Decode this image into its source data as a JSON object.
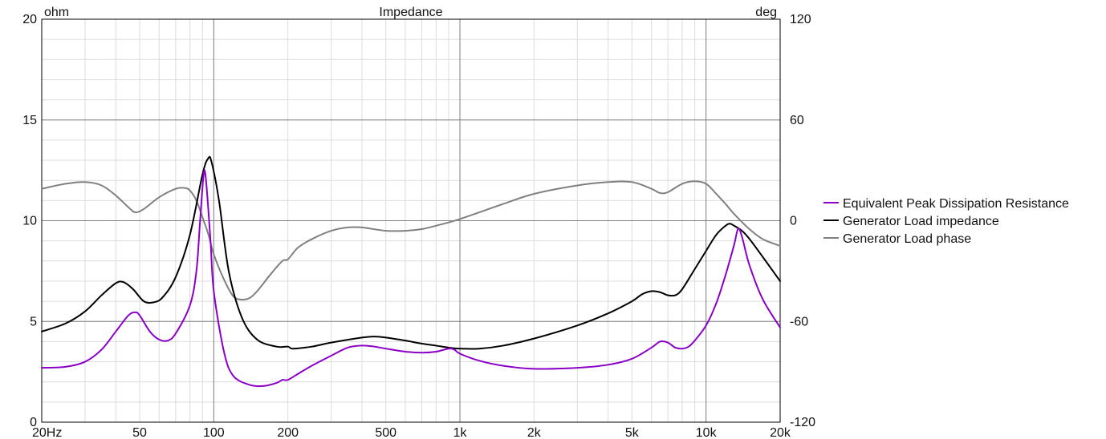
{
  "chart_data": {
    "type": "line",
    "title": "Impedance",
    "left_unit": "ohm",
    "right_unit": "deg",
    "x_scale": "log",
    "xlim": [
      20,
      20000
    ],
    "ylim_left": [
      0,
      20
    ],
    "ylim_right": [
      -120,
      120
    ],
    "x_ticks": [
      {
        "value": 20,
        "label": "20Hz"
      },
      {
        "value": 50,
        "label": "50"
      },
      {
        "value": 100,
        "label": "100"
      },
      {
        "value": 200,
        "label": "200"
      },
      {
        "value": 500,
        "label": "500"
      },
      {
        "value": 1000,
        "label": "1k"
      },
      {
        "value": 2000,
        "label": "2k"
      },
      {
        "value": 5000,
        "label": "5k"
      },
      {
        "value": 10000,
        "label": "10k"
      },
      {
        "value": 20000,
        "label": "20k"
      }
    ],
    "y_left_ticks": [
      {
        "value": 0,
        "label": "0"
      },
      {
        "value": 5,
        "label": "5"
      },
      {
        "value": 10,
        "label": "10"
      },
      {
        "value": 15,
        "label": "15"
      },
      {
        "value": 20,
        "label": "20"
      }
    ],
    "y_right_ticks": [
      {
        "value": -120,
        "label": "-120"
      },
      {
        "value": -60,
        "label": "-60"
      },
      {
        "value": 0,
        "label": "0"
      },
      {
        "value": 60,
        "label": "60"
      },
      {
        "value": 120,
        "label": "120"
      }
    ],
    "grid": true,
    "legend_position": "right",
    "series": [
      {
        "name": "Equivalent Peak Dissipation Resistance",
        "axis": "left",
        "color": "#8b00c8",
        "points": [
          [
            20,
            2.7
          ],
          [
            25,
            2.75
          ],
          [
            30,
            3.0
          ],
          [
            35,
            3.6
          ],
          [
            40,
            4.5
          ],
          [
            45,
            5.3
          ],
          [
            48,
            5.45
          ],
          [
            50,
            5.3
          ],
          [
            55,
            4.5
          ],
          [
            60,
            4.1
          ],
          [
            65,
            4.05
          ],
          [
            70,
            4.4
          ],
          [
            80,
            5.8
          ],
          [
            85,
            7.5
          ],
          [
            88,
            10.0
          ],
          [
            91,
            12.3
          ],
          [
            93,
            12.0
          ],
          [
            97,
            9.0
          ],
          [
            100,
            6.5
          ],
          [
            110,
            3.5
          ],
          [
            120,
            2.3
          ],
          [
            140,
            1.85
          ],
          [
            160,
            1.8
          ],
          [
            180,
            1.95
          ],
          [
            190,
            2.1
          ],
          [
            200,
            2.1
          ],
          [
            220,
            2.4
          ],
          [
            250,
            2.8
          ],
          [
            300,
            3.3
          ],
          [
            350,
            3.7
          ],
          [
            400,
            3.8
          ],
          [
            450,
            3.75
          ],
          [
            500,
            3.65
          ],
          [
            600,
            3.5
          ],
          [
            700,
            3.45
          ],
          [
            800,
            3.5
          ],
          [
            900,
            3.65
          ],
          [
            950,
            3.6
          ],
          [
            1000,
            3.4
          ],
          [
            1200,
            3.05
          ],
          [
            1500,
            2.8
          ],
          [
            2000,
            2.65
          ],
          [
            3000,
            2.7
          ],
          [
            4000,
            2.85
          ],
          [
            5000,
            3.15
          ],
          [
            6000,
            3.7
          ],
          [
            6500,
            4.0
          ],
          [
            7000,
            3.95
          ],
          [
            7500,
            3.7
          ],
          [
            8000,
            3.65
          ],
          [
            8500,
            3.75
          ],
          [
            9000,
            4.05
          ],
          [
            10000,
            4.8
          ],
          [
            11000,
            5.9
          ],
          [
            12000,
            7.3
          ],
          [
            13000,
            8.8
          ],
          [
            13500,
            9.6
          ],
          [
            14000,
            9.2
          ],
          [
            15000,
            7.8
          ],
          [
            17000,
            6.1
          ],
          [
            20000,
            4.7
          ]
        ]
      },
      {
        "name": "Generator Load impedance",
        "axis": "left",
        "color": "#000000",
        "points": [
          [
            20,
            4.5
          ],
          [
            25,
            4.9
          ],
          [
            30,
            5.5
          ],
          [
            35,
            6.3
          ],
          [
            40,
            6.9
          ],
          [
            43,
            6.95
          ],
          [
            47,
            6.6
          ],
          [
            52,
            6.0
          ],
          [
            57,
            5.95
          ],
          [
            62,
            6.2
          ],
          [
            70,
            7.2
          ],
          [
            80,
            9.3
          ],
          [
            90,
            12.3
          ],
          [
            95,
            13.1
          ],
          [
            98,
            12.9
          ],
          [
            105,
            11.0
          ],
          [
            115,
            7.5
          ],
          [
            130,
            5.2
          ],
          [
            150,
            4.1
          ],
          [
            180,
            3.75
          ],
          [
            200,
            3.75
          ],
          [
            210,
            3.65
          ],
          [
            250,
            3.75
          ],
          [
            300,
            3.95
          ],
          [
            400,
            4.2
          ],
          [
            450,
            4.25
          ],
          [
            500,
            4.2
          ],
          [
            600,
            4.05
          ],
          [
            700,
            3.9
          ],
          [
            800,
            3.8
          ],
          [
            900,
            3.7
          ],
          [
            1000,
            3.65
          ],
          [
            1200,
            3.65
          ],
          [
            1500,
            3.8
          ],
          [
            2000,
            4.15
          ],
          [
            3000,
            4.8
          ],
          [
            4000,
            5.4
          ],
          [
            5000,
            6.0
          ],
          [
            5500,
            6.35
          ],
          [
            6000,
            6.5
          ],
          [
            6500,
            6.45
          ],
          [
            7000,
            6.3
          ],
          [
            7500,
            6.3
          ],
          [
            8000,
            6.6
          ],
          [
            9000,
            7.6
          ],
          [
            10000,
            8.5
          ],
          [
            11000,
            9.3
          ],
          [
            12000,
            9.75
          ],
          [
            12500,
            9.85
          ],
          [
            13000,
            9.75
          ],
          [
            14000,
            9.5
          ],
          [
            15000,
            9.1
          ],
          [
            17000,
            8.2
          ],
          [
            20000,
            7.0
          ]
        ]
      },
      {
        "name": "Generator Load phase",
        "axis": "right",
        "color": "#808080",
        "points": [
          [
            20,
            19
          ],
          [
            25,
            22
          ],
          [
            30,
            23
          ],
          [
            35,
            21
          ],
          [
            40,
            15
          ],
          [
            45,
            8
          ],
          [
            48,
            5
          ],
          [
            52,
            7
          ],
          [
            60,
            14
          ],
          [
            70,
            19
          ],
          [
            76,
            19.5
          ],
          [
            80,
            18
          ],
          [
            85,
            12
          ],
          [
            90,
            2
          ],
          [
            95,
            -8
          ],
          [
            100,
            -20
          ],
          [
            110,
            -35
          ],
          [
            120,
            -45
          ],
          [
            130,
            -47
          ],
          [
            140,
            -46
          ],
          [
            150,
            -42
          ],
          [
            170,
            -32
          ],
          [
            190,
            -24
          ],
          [
            200,
            -23
          ],
          [
            220,
            -16
          ],
          [
            250,
            -11
          ],
          [
            300,
            -6
          ],
          [
            350,
            -4
          ],
          [
            400,
            -4
          ],
          [
            500,
            -6
          ],
          [
            600,
            -6
          ],
          [
            700,
            -5
          ],
          [
            800,
            -3
          ],
          [
            1000,
            1
          ],
          [
            1500,
            10
          ],
          [
            2000,
            16
          ],
          [
            3000,
            21
          ],
          [
            4000,
            23
          ],
          [
            5000,
            23
          ],
          [
            6000,
            19
          ],
          [
            6500,
            16.5
          ],
          [
            7000,
            17
          ],
          [
            8000,
            22
          ],
          [
            9000,
            23.5
          ],
          [
            10000,
            22
          ],
          [
            11000,
            16
          ],
          [
            12000,
            10
          ],
          [
            13000,
            4
          ],
          [
            15000,
            -5
          ],
          [
            17000,
            -11
          ],
          [
            20000,
            -15
          ]
        ]
      }
    ]
  }
}
